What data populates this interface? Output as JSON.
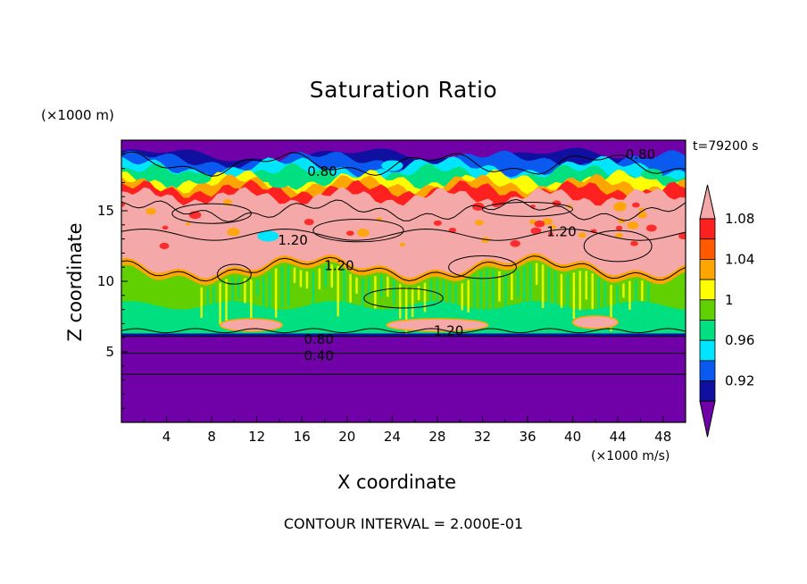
{
  "chart_data": {
    "type": "heatmap",
    "title": "Saturation Ratio",
    "xlabel": "X coordinate",
    "ylabel": "Z coordinate",
    "x_unit": "(×1000 m/s)",
    "y_unit": "(×1000 m)",
    "time_label": "t=79200 s",
    "footer": "CONTOUR INTERVAL = 2.000E-01",
    "xlim": [
      0,
      50
    ],
    "ylim": [
      0,
      20
    ],
    "x_ticks": [
      4,
      8,
      12,
      16,
      20,
      24,
      28,
      32,
      36,
      40,
      44,
      48
    ],
    "y_ticks": [
      5,
      10,
      15
    ],
    "colorbar": {
      "levels": [
        0.92,
        0.94,
        0.96,
        0.98,
        1.0,
        1.02,
        1.04,
        1.06,
        1.08
      ],
      "labels": [
        "0.92",
        "0.96",
        "1",
        "1.04",
        "1.08"
      ],
      "colors": [
        "#7000A8",
        "#1010A0",
        "#0A5AF0",
        "#00E5FF",
        "#00E080",
        "#60D000",
        "#FFFF00",
        "#FFA500",
        "#FF5A00",
        "#FF2020",
        "#F5A8A8"
      ]
    },
    "layers": [
      {
        "z_from": 0,
        "z_to": 6.2,
        "value": "< 0.92"
      },
      {
        "z_from": 6.2,
        "z_to": 11,
        "value": "1.00 - 1.02"
      },
      {
        "z_from": 11,
        "z_to": 15.5,
        "value": "> 1.08"
      },
      {
        "z_from": 15.5,
        "z_to": 18.8,
        "value": "0.94 - 1.08"
      },
      {
        "z_from": 18.8,
        "z_to": 20,
        "value": "< 0.92"
      }
    ],
    "contour_labels": [
      {
        "text": "0.80",
        "x": 17.5,
        "z": 5.9
      },
      {
        "text": "0.40",
        "x": 17.5,
        "z": 4.7
      },
      {
        "text": "1.20",
        "x": 29,
        "z": 6.5
      },
      {
        "text": "1.20",
        "x": 15.2,
        "z": 12.9
      },
      {
        "text": "1.20",
        "x": 19.3,
        "z": 11.1
      },
      {
        "text": "1.20",
        "x": 39,
        "z": 13.5
      },
      {
        "text": "0.80",
        "x": 17.8,
        "z": 17.8
      },
      {
        "text": "0.80",
        "x": 46,
        "z": 19.0
      }
    ]
  }
}
